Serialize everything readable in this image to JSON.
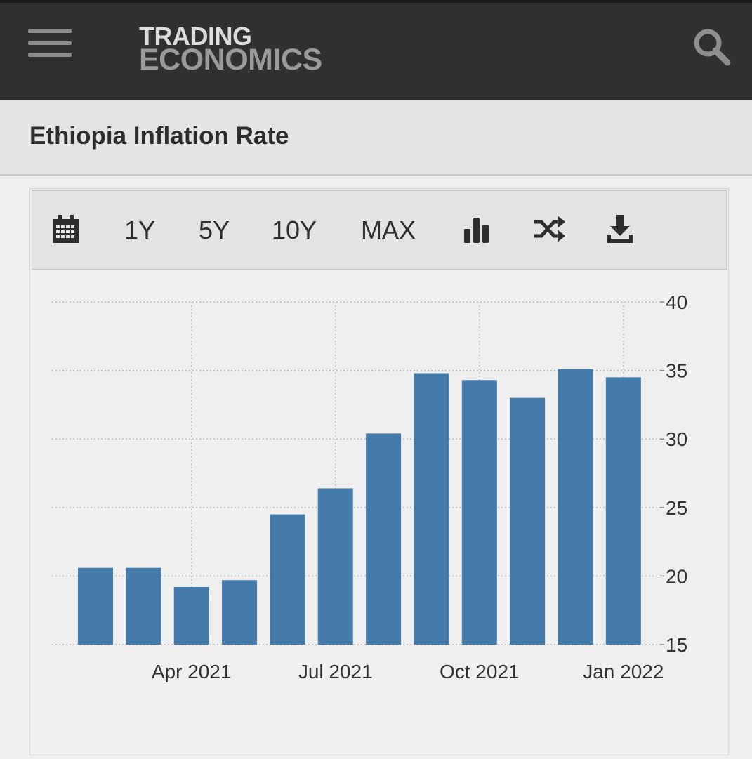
{
  "header": {
    "logo_line1": "TRADING",
    "logo_line2": "ECONOMICS",
    "menu_icon": "hamburger-menu-icon",
    "search_icon": "search-icon"
  },
  "page": {
    "title": "Ethiopia Inflation Rate"
  },
  "toolbar": {
    "calendar_icon": "calendar-icon",
    "range_1y": "1Y",
    "range_5y": "5Y",
    "range_10y": "10Y",
    "range_max": "MAX",
    "chart_type_icon": "bar-chart-icon",
    "compare_icon": "shuffle-icon",
    "download_icon": "download-icon"
  },
  "colors": {
    "bar": "#447baa",
    "header_bg": "#303030",
    "title_bg": "#e4e4e4",
    "page_bg": "#efefef"
  },
  "chart_data": {
    "type": "bar",
    "title": "Ethiopia Inflation Rate",
    "xlabel": "",
    "ylabel": "",
    "categories": [
      "Feb 2021",
      "Mar 2021",
      "Apr 2021",
      "May 2021",
      "Jun 2021",
      "Jul 2021",
      "Aug 2021",
      "Sep 2021",
      "Oct 2021",
      "Nov 2021",
      "Dec 2021",
      "Jan 2022"
    ],
    "values": [
      20.6,
      20.6,
      19.2,
      19.7,
      24.5,
      26.4,
      30.4,
      34.8,
      34.3,
      33.0,
      35.1,
      34.5
    ],
    "x_tick_labels": [
      "Apr 2021",
      "Jul 2021",
      "Oct 2021",
      "Jan 2022"
    ],
    "y_tick_labels": [
      "15",
      "20",
      "25",
      "30",
      "35",
      "40"
    ],
    "ylim": [
      15,
      40
    ],
    "y_axis_side": "right",
    "grid": true
  }
}
